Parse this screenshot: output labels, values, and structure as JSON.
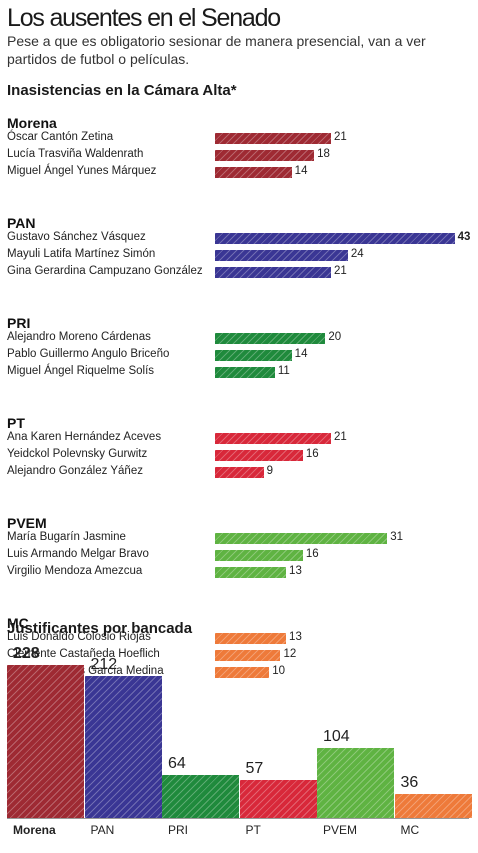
{
  "title": "Los ausentes en el Senado",
  "subtitle": "Pese a que es obligatorio sesionar de manera presencial, van a ver partidos de futbol o películas.",
  "colors": {
    "Morena": "#9e2a33",
    "PAN": "#3a3694",
    "PRI": "#1f8a3c",
    "PT": "#d8283a",
    "PVEM": "#5fb342",
    "MC": "#ee7a3a"
  },
  "chart_data": [
    {
      "type": "bar",
      "orientation": "horizontal",
      "title": "Inasistencias en la Cámara Alta*",
      "groups": [
        {
          "name": "Morena",
          "rows": [
            {
              "label": "Óscar Cantón Zetina",
              "value": 21
            },
            {
              "label": "Lucía Trasviña Waldenrath",
              "value": 18
            },
            {
              "label": "Miguel Ángel Yunes Márquez",
              "value": 14
            }
          ]
        },
        {
          "name": "PAN",
          "rows": [
            {
              "label": "Gustavo Sánchez Vásquez",
              "value": 43
            },
            {
              "label": "Mayuli Latifa Martínez Simón",
              "value": 24
            },
            {
              "label": "Gina Gerardina Campuzano González",
              "value": 21
            }
          ]
        },
        {
          "name": "PRI",
          "rows": [
            {
              "label": "Alejandro Moreno Cárdenas",
              "value": 20
            },
            {
              "label": "Pablo Guillermo Angulo Briceño",
              "value": 14
            },
            {
              "label": "Miguel Ángel Riquelme Solís",
              "value": 11
            }
          ]
        },
        {
          "name": "PT",
          "rows": [
            {
              "label": "Ana Karen Hernández Aceves",
              "value": 21
            },
            {
              "label": "Yeidckol Polevnsky Gurwitz",
              "value": 16
            },
            {
              "label": "Alejandro González Yáñez",
              "value": 9
            }
          ]
        },
        {
          "name": "PVEM",
          "rows": [
            {
              "label": "María Bugarín Jasmine",
              "value": 31
            },
            {
              "label": "Luis Armando Melgar Bravo",
              "value": 16
            },
            {
              "label": "Virgilio Mendoza Amezcua",
              "value": 13
            }
          ]
        },
        {
          "name": "MC",
          "rows": [
            {
              "label": "Luis Donaldo Colosio Riojas",
              "value": 13
            },
            {
              "label": "Clemente Castañeda Hoeflich",
              "value": 12
            },
            {
              "label": "Amalia Dolores García Medina",
              "value": 10
            }
          ]
        }
      ]
    },
    {
      "type": "bar",
      "orientation": "vertical",
      "title": "Justificantes por bancada",
      "categories": [
        "Morena",
        "PAN",
        "PRI",
        "PT",
        "PVEM",
        "MC"
      ],
      "values": [
        228,
        212,
        64,
        57,
        104,
        36
      ]
    }
  ]
}
